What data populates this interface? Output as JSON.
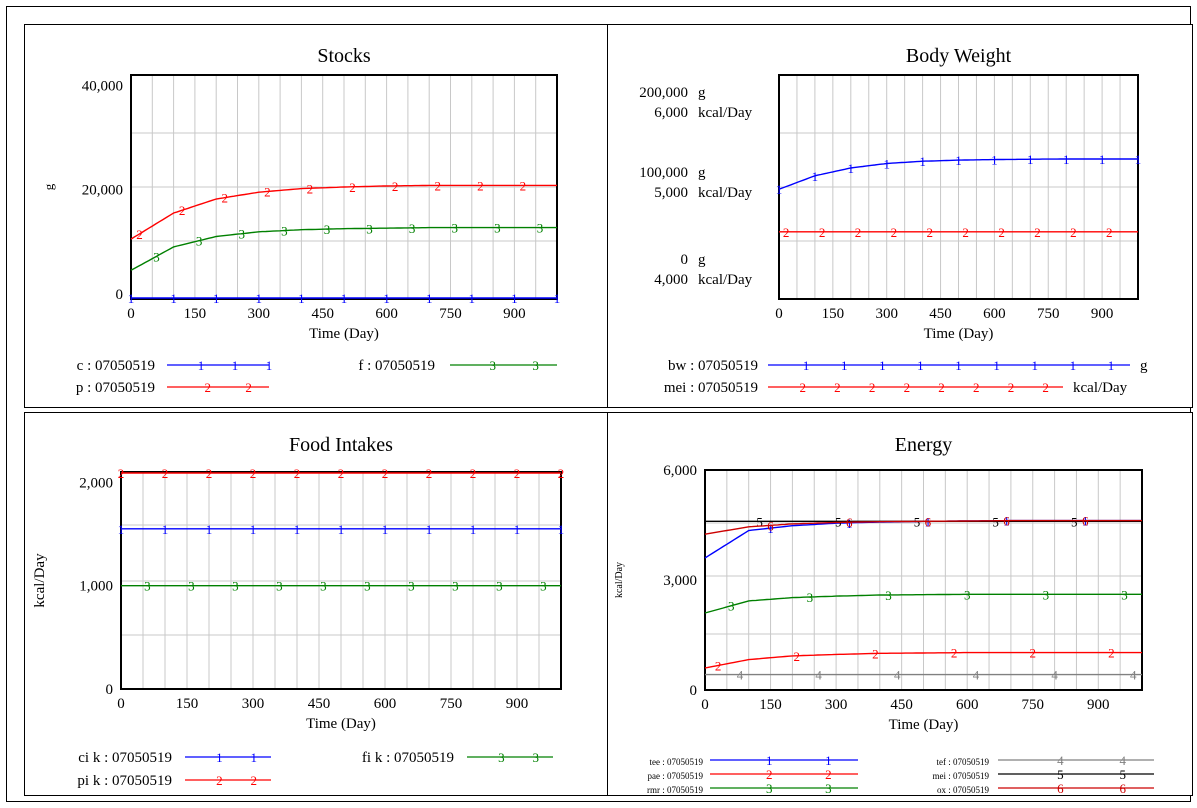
{
  "chart_data": [
    {
      "type": "line",
      "title": "Stocks",
      "xlabel": "Time (Day)",
      "ylabel": "g",
      "xlim": [
        0,
        1000
      ],
      "ylim": [
        -1000,
        42000
      ],
      "x_ticks": [
        0,
        150,
        300,
        450,
        600,
        750,
        900
      ],
      "y_ticks": [
        0,
        20000,
        40000
      ],
      "y_tick_labels": [
        "0",
        "20,000",
        "40,000"
      ],
      "grid": true,
      "x": [
        0,
        100,
        200,
        300,
        400,
        500,
        600,
        700,
        800,
        900,
        1000
      ],
      "series": [
        {
          "name": "c : 07050519",
          "marker": "1",
          "color": "#0000ff",
          "values": [
            -1000,
            -1000,
            -1000,
            -1000,
            -1000,
            -1000,
            -1000,
            -1000,
            -1000,
            -1000,
            -1000
          ]
        },
        {
          "name": "p : 07050519",
          "marker": "2",
          "color": "#ff0000",
          "values": [
            10500,
            15500,
            18200,
            19500,
            20200,
            20500,
            20700,
            20800,
            20800,
            20800,
            20800
          ]
        },
        {
          "name": "f : 07050519",
          "marker": "3",
          "color": "#008000",
          "values": [
            4500,
            9000,
            11000,
            11900,
            12300,
            12500,
            12600,
            12700,
            12700,
            12700,
            12700
          ]
        }
      ]
    },
    {
      "type": "line",
      "title": "Body Weight",
      "xlabel": "Time (Day)",
      "xlim": [
        0,
        1000
      ],
      "x_ticks": [
        0,
        150,
        300,
        450,
        600,
        750,
        900
      ],
      "grid": true,
      "y_axis_labels": [
        {
          "value": "200,000",
          "unit": "g"
        },
        {
          "value": "6,000",
          "unit": "kcal/Day"
        },
        {
          "value": "100,000",
          "unit": "g"
        },
        {
          "value": "5,000",
          "unit": "kcal/Day"
        },
        {
          "value": "0",
          "unit": "g"
        },
        {
          "value": "4,000",
          "unit": "kcal/Day"
        }
      ],
      "x": [
        0,
        100,
        200,
        300,
        400,
        500,
        600,
        700,
        800,
        900,
        1000
      ],
      "series": [
        {
          "name": "bw : 07050519",
          "unit": "g",
          "marker": "1",
          "color": "#0000ff",
          "ylim": [
            0,
            200000
          ],
          "values": [
            98000,
            110000,
            117000,
            121000,
            123000,
            124000,
            124500,
            124800,
            125000,
            125000,
            125000
          ]
        },
        {
          "name": "mei : 07050519",
          "unit": "kcal/Day",
          "marker": "2",
          "color": "#ff0000",
          "ylim": [
            4000,
            6000
          ],
          "values": [
            4600,
            4600,
            4600,
            4600,
            4600,
            4600,
            4600,
            4600,
            4600,
            4600,
            4600
          ]
        }
      ]
    },
    {
      "type": "line",
      "title": "Food Intakes",
      "xlabel": "Time (Day)",
      "ylabel": "kcal/Day",
      "xlim": [
        0,
        1000
      ],
      "ylim": [
        0,
        2100
      ],
      "x_ticks": [
        0,
        150,
        300,
        450,
        600,
        750,
        900
      ],
      "y_ticks": [
        0,
        1000,
        2000
      ],
      "y_tick_labels": [
        "0",
        "1,000",
        "2,000"
      ],
      "grid": true,
      "x": [
        0,
        1000
      ],
      "series": [
        {
          "name": "ci k : 07050519",
          "marker": "1",
          "color": "#0000ff",
          "values": [
            1550,
            1550
          ]
        },
        {
          "name": "pi k : 07050519",
          "marker": "2",
          "color": "#ff0000",
          "values": [
            2100,
            2100
          ]
        },
        {
          "name": "fi k : 07050519",
          "marker": "3",
          "color": "#008000",
          "values": [
            1000,
            1000
          ]
        }
      ]
    },
    {
      "type": "line",
      "title": "Energy",
      "xlabel": "Time (Day)",
      "ylabel": "kcal/Day",
      "xlim": [
        0,
        1000
      ],
      "ylim": [
        0,
        6000
      ],
      "x_ticks": [
        0,
        150,
        300,
        450,
        600,
        750,
        900
      ],
      "y_ticks": [
        0,
        3000,
        6000
      ],
      "y_tick_labels": [
        "0",
        "3,000",
        "6,000"
      ],
      "grid": true,
      "x": [
        0,
        100,
        200,
        300,
        400,
        500,
        600,
        700,
        800,
        900,
        1000
      ],
      "series": [
        {
          "name": "tee : 07050519",
          "marker": "1",
          "color": "#0000ff",
          "values": [
            3600,
            4350,
            4480,
            4550,
            4580,
            4600,
            4610,
            4620,
            4620,
            4620,
            4620
          ]
        },
        {
          "name": "pae : 07050519",
          "marker": "2",
          "color": "#ff0000",
          "values": [
            600,
            830,
            930,
            970,
            1000,
            1010,
            1020,
            1020,
            1020,
            1020,
            1020
          ]
        },
        {
          "name": "rmr : 07050519",
          "marker": "3",
          "color": "#008000",
          "values": [
            2100,
            2430,
            2520,
            2560,
            2590,
            2600,
            2610,
            2610,
            2610,
            2610,
            2610
          ]
        },
        {
          "name": "tef : 07050519",
          "marker": "4",
          "color": "#808080",
          "values": [
            420,
            420,
            420,
            420,
            420,
            420,
            420,
            420,
            420,
            420,
            420
          ]
        },
        {
          "name": "mei : 07050519",
          "marker": "5",
          "color": "#000000",
          "values": [
            4600,
            4600,
            4600,
            4600,
            4600,
            4600,
            4600,
            4600,
            4600,
            4600,
            4600
          ]
        },
        {
          "name": "ox : 07050519",
          "marker": "6",
          "color": "#cc0000",
          "values": [
            4250,
            4450,
            4530,
            4570,
            4590,
            4600,
            4610,
            4620,
            4620,
            4620,
            4620
          ]
        }
      ]
    }
  ]
}
